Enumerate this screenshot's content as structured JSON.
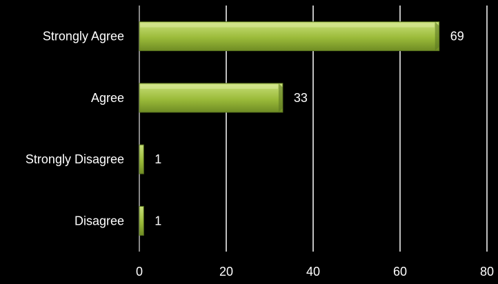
{
  "chart_data": {
    "type": "bar",
    "orientation": "horizontal",
    "categories": [
      "Strongly Agree",
      "Agree",
      "Strongly Disagree",
      "Disagree"
    ],
    "values": [
      69,
      33,
      1,
      1
    ],
    "data_labels": [
      "69",
      "33",
      "1",
      "1"
    ],
    "xlim": [
      0,
      80
    ],
    "x_ticks": [
      0,
      20,
      40,
      60,
      80
    ],
    "x_tick_labels": [
      "0",
      "20",
      "40",
      "60",
      "80"
    ],
    "grid": "vertical",
    "legend": "none",
    "colors": {
      "background": "#000000",
      "bar_top": "#c9e07a",
      "bar_mid": "#9bbb3a",
      "bar_bottom": "#6f8c24",
      "bar_edge": "#5a7420",
      "grid": "#ffffff",
      "text": "#ffffff"
    }
  }
}
